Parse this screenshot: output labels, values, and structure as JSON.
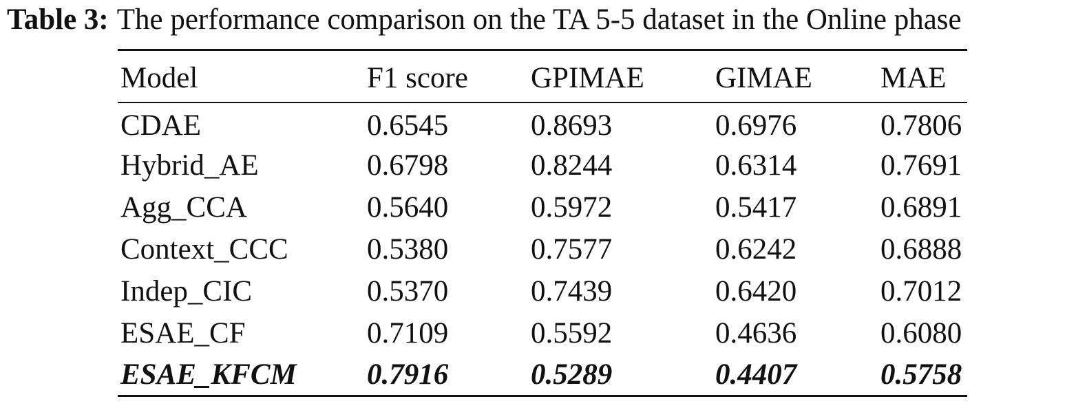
{
  "caption": {
    "label": "Table 3:",
    "text": "The performance comparison on the TA 5-5 dataset in the Online phase"
  },
  "table": {
    "headers": [
      "Model",
      "F1 score",
      "GPIMAE",
      "GIMAE",
      "MAE"
    ],
    "rows": [
      [
        "CDAE",
        "0.6545",
        "0.8693",
        "0.6976",
        "0.7806"
      ],
      [
        "Hybrid_AE",
        "0.6798",
        "0.8244",
        "0.6314",
        "0.7691"
      ],
      [
        "Agg_CCA",
        "0.5640",
        "0.5972",
        "0.5417",
        "0.6891"
      ],
      [
        "Context_CCC",
        "0.5380",
        "0.7577",
        "0.6242",
        "0.6888"
      ],
      [
        "Indep_CIC",
        "0.5370",
        "0.7439",
        "0.6420",
        "0.7012"
      ],
      [
        "ESAE_CF",
        "0.7109",
        "0.5592",
        "0.4636",
        "0.6080"
      ],
      [
        "ESAE_KFCM",
        "0.7916",
        "0.5289",
        "0.4407",
        "0.5758"
      ]
    ],
    "highlighted_row": "ESAE_KFCM"
  }
}
